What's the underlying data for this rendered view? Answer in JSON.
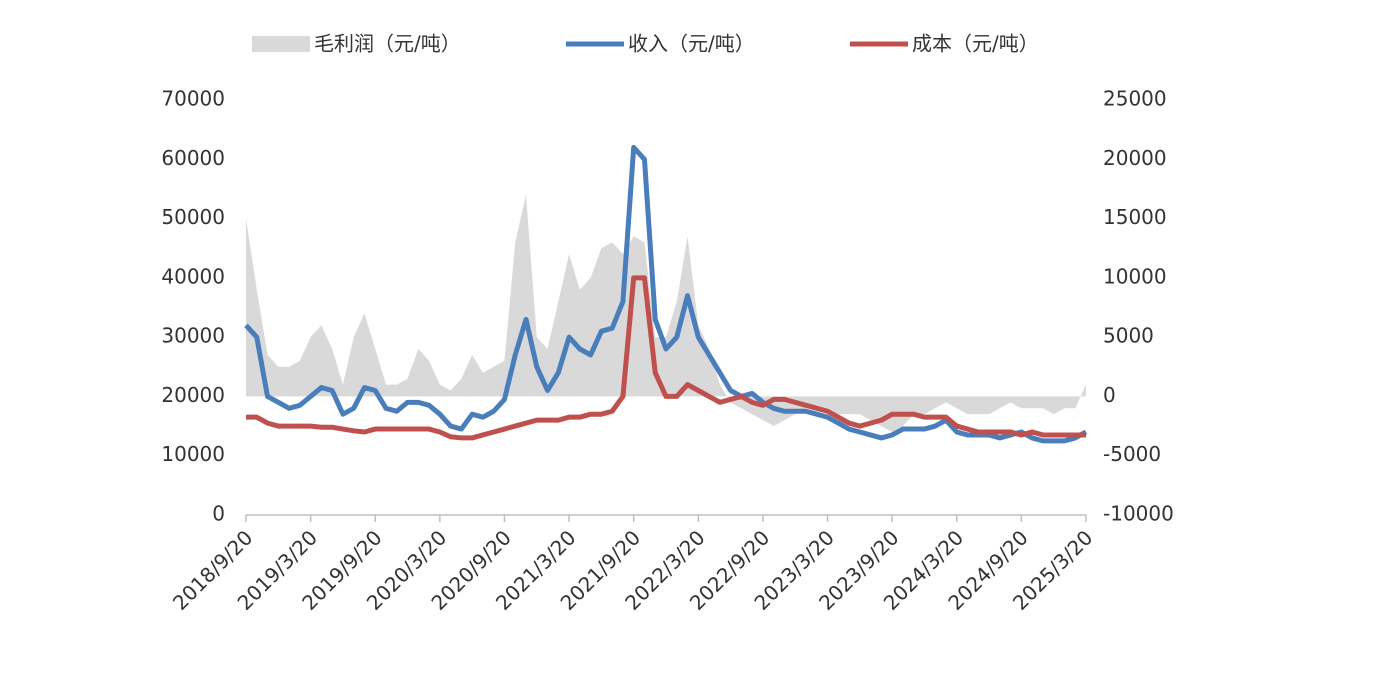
{
  "chart_data": {
    "type": "combo",
    "categories": [
      "2018/9/20",
      null,
      null,
      null,
      null,
      null,
      "2019/3/20",
      null,
      null,
      null,
      null,
      null,
      "2019/9/20",
      null,
      null,
      null,
      null,
      null,
      "2020/3/20",
      null,
      null,
      null,
      null,
      null,
      "2020/9/20",
      null,
      null,
      null,
      null,
      null,
      "2021/3/20",
      null,
      null,
      null,
      null,
      null,
      "2021/9/20",
      null,
      null,
      null,
      null,
      null,
      "2022/3/20",
      null,
      null,
      null,
      null,
      null,
      "2022/9/20",
      null,
      null,
      null,
      null,
      null,
      "2023/3/20",
      null,
      null,
      null,
      null,
      null,
      "2023/9/20",
      null,
      null,
      null,
      null,
      null,
      "2024/3/20",
      null,
      null,
      null,
      null,
      null,
      "2024/9/20",
      null,
      null,
      null,
      null,
      null,
      "2025/3/20"
    ],
    "series": [
      {
        "name": "毛利润（元/吨）",
        "type": "area",
        "axis": "y2",
        "color": "#d9d9d9",
        "values": [
          15000,
          9000,
          3500,
          2500,
          2500,
          3000,
          5000,
          6000,
          4000,
          1000,
          5000,
          7000,
          4000,
          1000,
          1000,
          1500,
          4000,
          3000,
          1000,
          500,
          1500,
          3500,
          2000,
          2500,
          3000,
          13000,
          17000,
          5000,
          4000,
          8000,
          12000,
          9000,
          10000,
          12500,
          13000,
          12000,
          13500,
          13000,
          5000,
          5000,
          8000,
          13500,
          6000,
          4000,
          1000,
          -500,
          -1000,
          -1500,
          -2000,
          -2500,
          -2000,
          -1500,
          -1000,
          -1000,
          -1500,
          -1500,
          -1500,
          -1500,
          -2000,
          -2500,
          -3000,
          -2500,
          -1500,
          -1500,
          -1000,
          -500,
          -1000,
          -1500,
          -1500,
          -1500,
          -1000,
          -500,
          -1000,
          -1000,
          -1000,
          -1500,
          -1000,
          -1000,
          1000
        ]
      },
      {
        "name": "收入（元/吨）",
        "type": "line",
        "color": "#4a7ebb",
        "values": [
          32000,
          30000,
          20000,
          19000,
          18000,
          18500,
          20000,
          21500,
          21000,
          17000,
          18000,
          21500,
          21000,
          18000,
          17500,
          19000,
          19000,
          18500,
          17000,
          15000,
          14500,
          17000,
          16500,
          17500,
          19500,
          27000,
          33000,
          25000,
          21000,
          24000,
          30000,
          28000,
          27000,
          31000,
          31500,
          36000,
          62000,
          60000,
          33000,
          28000,
          30000,
          37000,
          30000,
          27000,
          24000,
          21000,
          20000,
          20500,
          19000,
          18000,
          17500,
          17500,
          17500,
          17000,
          16500,
          15500,
          14500,
          14000,
          13500,
          13000,
          13500,
          14500,
          14500,
          14500,
          15000,
          16000,
          14000,
          13500,
          13500,
          13500,
          13000,
          13500,
          14000,
          13000,
          12500,
          12500,
          12500,
          13000,
          14000
        ]
      },
      {
        "name": "成本（元/吨）",
        "type": "line",
        "color": "#c0504d",
        "values": [
          16500,
          16500,
          15500,
          15000,
          15000,
          15000,
          15000,
          14800,
          14800,
          14500,
          14200,
          14000,
          14500,
          14500,
          14500,
          14500,
          14500,
          14500,
          14000,
          13200,
          13000,
          13000,
          13500,
          14000,
          14500,
          15000,
          15500,
          16000,
          16000,
          16000,
          16500,
          16500,
          17000,
          17000,
          17500,
          20000,
          40000,
          40000,
          24000,
          20000,
          20000,
          22000,
          21000,
          20000,
          19000,
          19500,
          20000,
          19000,
          18500,
          19500,
          19500,
          19000,
          18500,
          18000,
          17500,
          16500,
          15500,
          15000,
          15500,
          16000,
          17000,
          17000,
          17000,
          16500,
          16500,
          16500,
          15000,
          14500,
          14000,
          14000,
          14000,
          14000,
          13500,
          14000,
          13500,
          13500,
          13500,
          13500,
          13500
        ]
      }
    ],
    "ylim": [
      0,
      70000
    ],
    "yticks": [
      0,
      10000,
      20000,
      30000,
      40000,
      50000,
      60000,
      70000
    ],
    "y2lim": [
      -10000,
      25000
    ],
    "y2ticks": [
      -10000,
      -5000,
      0,
      5000,
      10000,
      15000,
      20000,
      25000
    ]
  }
}
